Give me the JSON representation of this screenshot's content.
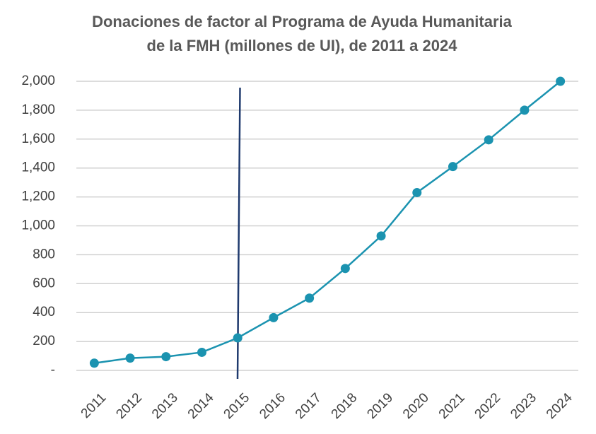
{
  "chart_data": {
    "type": "line",
    "title": [
      "Donaciones de factor al Programa de Ayuda Humanitaria",
      "de la FMH (millones de UI), de 2011 a 2024"
    ],
    "categories": [
      "2011",
      "2012",
      "2013",
      "2014",
      "2015",
      "2016",
      "2017",
      "2018",
      "2019",
      "2020",
      "2021",
      "2022",
      "2023",
      "2024"
    ],
    "values": [
      50,
      85,
      95,
      125,
      225,
      365,
      500,
      705,
      930,
      1230,
      1410,
      1595,
      1800,
      2000
    ],
    "color": "#1b93b0",
    "ylim": [
      0,
      2000
    ],
    "yticks": [
      {
        "value": 0,
        "label": "-"
      },
      200,
      400,
      600,
      800,
      {
        "value": 1000,
        "label": "1,000"
      },
      {
        "value": 1200,
        "label": "1,200"
      },
      {
        "value": 1400,
        "label": "1,400"
      },
      {
        "value": 1600,
        "label": "1,600"
      },
      {
        "value": 1800,
        "label": "1,800"
      },
      {
        "value": 2000,
        "label": "2,000"
      }
    ],
    "grid": true
  }
}
